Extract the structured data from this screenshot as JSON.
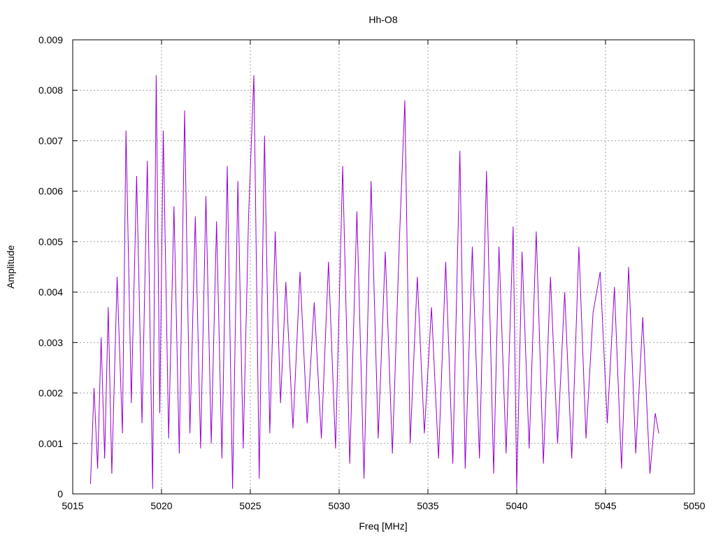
{
  "chart_data": {
    "type": "line",
    "title": "Hh-O8",
    "xlabel": "Freq [MHz]",
    "ylabel": "Amplitude",
    "xlim": [
      5015,
      5050
    ],
    "ylim": [
      0,
      0.009
    ],
    "x_ticks": [
      5015,
      5020,
      5025,
      5030,
      5035,
      5040,
      5045,
      5050
    ],
    "x_tick_labels": [
      "5015",
      "5020",
      "5025",
      "5030",
      "5035",
      "5040",
      "5045",
      "5050"
    ],
    "y_ticks": [
      0,
      0.001,
      0.002,
      0.003,
      0.004,
      0.005,
      0.006,
      0.007,
      0.008,
      0.009
    ],
    "y_tick_labels": [
      "0",
      "0.001",
      "0.002",
      "0.003",
      "0.004",
      "0.005",
      "0.006",
      "0.007",
      "0.008",
      "0.009"
    ],
    "grid": true,
    "series_color": "#9400d3",
    "series": [
      {
        "x": [
          5016.0,
          5016.2,
          5016.4,
          5016.6,
          5016.8,
          5017.0,
          5017.2,
          5017.5,
          5017.8,
          5018.0,
          5018.3,
          5018.6,
          5018.9,
          5019.2,
          5019.5,
          5019.7,
          5019.9,
          5020.1,
          5020.4,
          5020.7,
          5021.0,
          5021.3,
          5021.6,
          5021.9,
          5022.2,
          5022.5,
          5022.8,
          5023.1,
          5023.4,
          5023.7,
          5024.0,
          5024.3,
          5024.6,
          5024.9,
          5025.2,
          5025.5,
          5025.8,
          5026.1,
          5026.4,
          5026.7,
          5027.0,
          5027.4,
          5027.8,
          5028.2,
          5028.6,
          5029.0,
          5029.4,
          5029.8,
          5030.2,
          5030.6,
          5031.0,
          5031.4,
          5031.8,
          5032.2,
          5032.6,
          5033.0,
          5033.4,
          5033.7,
          5034.0,
          5034.4,
          5034.8,
          5035.2,
          5035.6,
          5036.0,
          5036.4,
          5036.8,
          5037.1,
          5037.5,
          5037.9,
          5038.3,
          5038.7,
          5039.0,
          5039.4,
          5039.8,
          5040.0,
          5040.3,
          5040.7,
          5041.1,
          5041.5,
          5041.9,
          5042.3,
          5042.7,
          5043.1,
          5043.5,
          5043.9,
          5044.3,
          5044.7,
          5045.1,
          5045.5,
          5045.9,
          5046.3,
          5046.7,
          5047.1,
          5047.5,
          5047.8,
          5048.0
        ],
        "y": [
          0.0002,
          0.0021,
          0.0005,
          0.0031,
          0.0007,
          0.0037,
          0.0004,
          0.0043,
          0.0012,
          0.0072,
          0.0018,
          0.0063,
          0.0014,
          0.0066,
          0.0001,
          0.0083,
          0.0016,
          0.0072,
          0.0011,
          0.0057,
          0.0008,
          0.0076,
          0.0012,
          0.0055,
          0.0009,
          0.0059,
          0.001,
          0.0054,
          0.0007,
          0.0065,
          0.0001,
          0.0062,
          0.0009,
          0.0055,
          0.0083,
          0.0003,
          0.0071,
          0.0012,
          0.0052,
          0.0018,
          0.0042,
          0.0013,
          0.0044,
          0.0014,
          0.0038,
          0.0011,
          0.0046,
          0.0009,
          0.0065,
          0.0006,
          0.0056,
          0.0003,
          0.0062,
          0.0011,
          0.0048,
          0.0008,
          0.0051,
          0.0078,
          0.001,
          0.0043,
          0.0012,
          0.0037,
          0.0007,
          0.0046,
          0.0006,
          0.0068,
          0.0005,
          0.0049,
          0.0007,
          0.0064,
          0.0004,
          0.0049,
          0.0008,
          0.0053,
          0.0001,
          0.0048,
          0.0009,
          0.0052,
          0.0006,
          0.0043,
          0.001,
          0.004,
          0.0007,
          0.0049,
          0.0011,
          0.0036,
          0.0044,
          0.0014,
          0.0041,
          0.0005,
          0.0045,
          0.0008,
          0.0035,
          0.0004,
          0.0016,
          0.0012
        ]
      }
    ]
  }
}
